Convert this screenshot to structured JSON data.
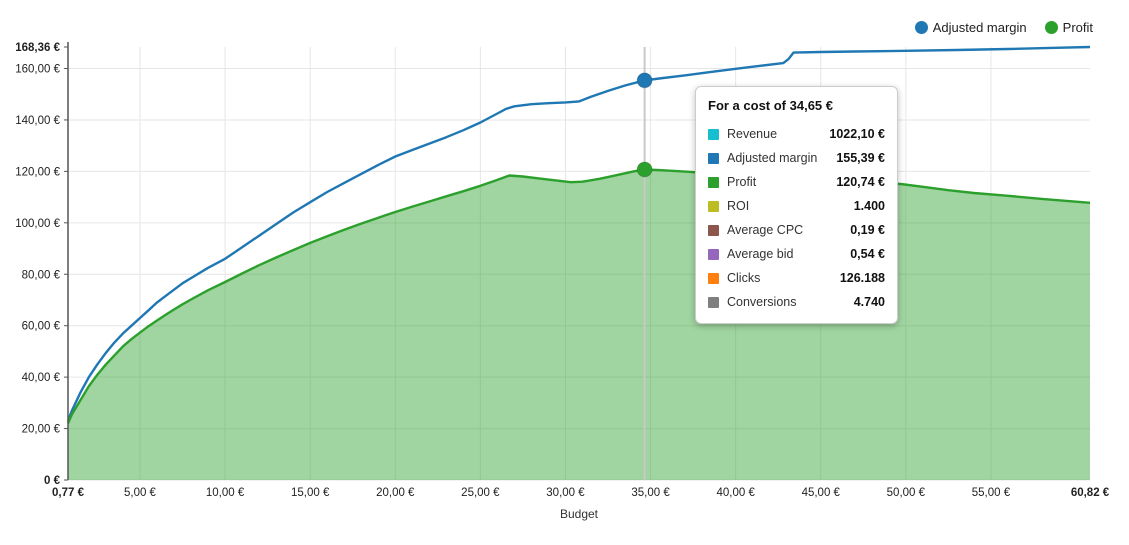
{
  "colors": {
    "grid": "#e6e6e6",
    "axis": "#555555",
    "crosshair": "#c9c9c9",
    "text": "#222222",
    "adjusted_margin": "#1f77b4",
    "profit": "#2ca02c",
    "profit_area_fill": "rgba(44,160,44,0.45)"
  },
  "legend": {
    "items": [
      {
        "label": "Adjusted margin",
        "color": "#1f77b4"
      },
      {
        "label": "Profit",
        "color": "#2ca02c"
      }
    ]
  },
  "tooltip": {
    "title": "For a cost of 34,65 €",
    "rows": [
      {
        "label": "Revenue",
        "value": "1022,10 €",
        "color": "#17becf"
      },
      {
        "label": "Adjusted margin",
        "value": "155,39 €",
        "color": "#1f77b4"
      },
      {
        "label": "Profit",
        "value": "120,74 €",
        "color": "#2ca02c"
      },
      {
        "label": "ROI",
        "value": "1.400",
        "color": "#bcbd22"
      },
      {
        "label": "Average CPC",
        "value": "0,19 €",
        "color": "#8c564b"
      },
      {
        "label": "Average bid",
        "value": "0,54 €",
        "color": "#9467bd"
      },
      {
        "label": "Clicks",
        "value": "126.188",
        "color": "#ff7f0e"
      },
      {
        "label": "Conversions",
        "value": "4.740",
        "color": "#7f7f7f"
      }
    ]
  },
  "chart_data": {
    "type": "area",
    "title": "",
    "xlabel": "Budget",
    "ylabel": "",
    "grid": true,
    "legend_position": "top-right",
    "x_axis": {
      "min": 0.77,
      "max": 60.82,
      "ticks": [
        {
          "value": 0.77,
          "label": "0,77 €",
          "bold": true,
          "grid": false
        },
        {
          "value": 5,
          "label": "5,00 €",
          "bold": false,
          "grid": true
        },
        {
          "value": 10,
          "label": "10,00 €",
          "bold": false,
          "grid": true
        },
        {
          "value": 15,
          "label": "15,00 €",
          "bold": false,
          "grid": true
        },
        {
          "value": 20,
          "label": "20,00 €",
          "bold": false,
          "grid": true
        },
        {
          "value": 25,
          "label": "25,00 €",
          "bold": false,
          "grid": true
        },
        {
          "value": 30,
          "label": "30,00 €",
          "bold": false,
          "grid": true
        },
        {
          "value": 35,
          "label": "35,00 €",
          "bold": false,
          "grid": true
        },
        {
          "value": 40,
          "label": "40,00 €",
          "bold": false,
          "grid": true
        },
        {
          "value": 45,
          "label": "45,00 €",
          "bold": false,
          "grid": true
        },
        {
          "value": 50,
          "label": "50,00 €",
          "bold": false,
          "grid": true
        },
        {
          "value": 55,
          "label": "55,00 €",
          "bold": false,
          "grid": true
        },
        {
          "value": 60.82,
          "label": "60,82 €",
          "bold": true,
          "grid": false
        }
      ]
    },
    "y_axis": {
      "min": 0,
      "max": 168.36,
      "ticks": [
        {
          "value": 0,
          "label": "0 €",
          "bold": true,
          "grid": true
        },
        {
          "value": 20,
          "label": "20,00 €",
          "bold": false,
          "grid": true
        },
        {
          "value": 40,
          "label": "40,00 €",
          "bold": false,
          "grid": true
        },
        {
          "value": 60,
          "label": "60,00 €",
          "bold": false,
          "grid": true
        },
        {
          "value": 80,
          "label": "80,00 €",
          "bold": false,
          "grid": true
        },
        {
          "value": 100,
          "label": "100,00 €",
          "bold": false,
          "grid": true
        },
        {
          "value": 120,
          "label": "120,00 €",
          "bold": false,
          "grid": true
        },
        {
          "value": 140,
          "label": "140,00 €",
          "bold": false,
          "grid": true
        },
        {
          "value": 160,
          "label": "160,00 €",
          "bold": false,
          "grid": true
        },
        {
          "value": 168.36,
          "label": "168,36 €",
          "bold": true,
          "grid": false
        }
      ]
    },
    "series": [
      {
        "name": "Adjusted margin",
        "style": "line",
        "color": "#1f77b4",
        "points": [
          [
            0.77,
            23
          ],
          [
            1,
            27
          ],
          [
            1.5,
            34
          ],
          [
            2,
            40
          ],
          [
            2.5,
            45
          ],
          [
            3,
            49.5
          ],
          [
            3.5,
            53.5
          ],
          [
            4,
            57
          ],
          [
            4.5,
            60
          ],
          [
            5,
            63
          ],
          [
            5.5,
            66
          ],
          [
            6,
            69
          ],
          [
            6.5,
            71.5
          ],
          [
            7,
            74
          ],
          [
            7.5,
            76.5
          ],
          [
            8,
            78.5
          ],
          [
            9,
            82.5
          ],
          [
            10,
            86
          ],
          [
            11,
            90.5
          ],
          [
            12,
            95
          ],
          [
            13,
            99.5
          ],
          [
            14,
            104
          ],
          [
            15,
            108
          ],
          [
            16,
            112
          ],
          [
            17,
            115.5
          ],
          [
            18,
            119
          ],
          [
            19,
            122.5
          ],
          [
            20,
            125.8
          ],
          [
            21,
            128.3
          ],
          [
            22,
            130.8
          ],
          [
            23,
            133.3
          ],
          [
            24,
            136
          ],
          [
            25,
            139
          ],
          [
            26,
            142.5
          ],
          [
            26.5,
            144.3
          ],
          [
            27,
            145.3
          ],
          [
            28,
            146.1
          ],
          [
            29,
            146.5
          ],
          [
            30,
            146.8
          ],
          [
            30.8,
            147.2
          ],
          [
            31.5,
            149
          ],
          [
            32.5,
            151.3
          ],
          [
            33.5,
            153.4
          ],
          [
            34.65,
            155.39
          ],
          [
            35.5,
            156.1
          ],
          [
            37,
            157.3
          ],
          [
            38.5,
            158.6
          ],
          [
            40,
            159.9
          ],
          [
            41.5,
            161.1
          ],
          [
            42.8,
            162.1
          ],
          [
            43.1,
            163.6
          ],
          [
            43.4,
            166.2
          ],
          [
            45,
            166.4
          ],
          [
            47,
            166.6
          ],
          [
            50,
            166.9
          ],
          [
            53,
            167.2
          ],
          [
            56,
            167.6
          ],
          [
            58.5,
            168
          ],
          [
            60.82,
            168.36
          ]
        ]
      },
      {
        "name": "Profit",
        "style": "area",
        "color": "#2ca02c",
        "fill": "rgba(44,160,44,0.45)",
        "points": [
          [
            0.77,
            22
          ],
          [
            1,
            25.5
          ],
          [
            1.5,
            31
          ],
          [
            2,
            36.5
          ],
          [
            2.5,
            41
          ],
          [
            3,
            45
          ],
          [
            3.5,
            48.5
          ],
          [
            4,
            52
          ],
          [
            4.5,
            54.8
          ],
          [
            5,
            57.3
          ],
          [
            5.5,
            59.8
          ],
          [
            6,
            62
          ],
          [
            6.5,
            64.2
          ],
          [
            7,
            66.3
          ],
          [
            7.5,
            68.3
          ],
          [
            8,
            70.2
          ],
          [
            9,
            73.8
          ],
          [
            10,
            77
          ],
          [
            11,
            80.3
          ],
          [
            12,
            83.5
          ],
          [
            13,
            86.5
          ],
          [
            14,
            89.4
          ],
          [
            15,
            92.2
          ],
          [
            16,
            94.8
          ],
          [
            17,
            97.3
          ],
          [
            18,
            99.7
          ],
          [
            19,
            102
          ],
          [
            20,
            104.2
          ],
          [
            21,
            106.3
          ],
          [
            22,
            108.3
          ],
          [
            23,
            110.3
          ],
          [
            24,
            112.3
          ],
          [
            25,
            114.4
          ],
          [
            26,
            116.7
          ],
          [
            26.7,
            118.4
          ],
          [
            27.5,
            118
          ],
          [
            28.5,
            117.2
          ],
          [
            29.5,
            116.4
          ],
          [
            30.3,
            115.8
          ],
          [
            31,
            116
          ],
          [
            32,
            117.1
          ],
          [
            33,
            118.5
          ],
          [
            34,
            120
          ],
          [
            34.65,
            120.74
          ],
          [
            35.5,
            120.5
          ],
          [
            37,
            119.9
          ],
          [
            38.5,
            119.3
          ],
          [
            40,
            118.6
          ],
          [
            42,
            117.7
          ],
          [
            44,
            116.9
          ],
          [
            46,
            116.2
          ],
          [
            48,
            115.6
          ],
          [
            49.7,
            115.1
          ],
          [
            51,
            114
          ],
          [
            52.5,
            112.7
          ],
          [
            54,
            111.6
          ],
          [
            56,
            110.5
          ],
          [
            58,
            109.3
          ],
          [
            60.82,
            107.8
          ]
        ]
      }
    ],
    "crosshair": {
      "x": 34.65,
      "markers": [
        {
          "series": "Adjusted margin",
          "value": 155.39,
          "color": "#1f77b4"
        },
        {
          "series": "Profit",
          "value": 120.74,
          "color": "#2ca02c"
        }
      ]
    }
  }
}
